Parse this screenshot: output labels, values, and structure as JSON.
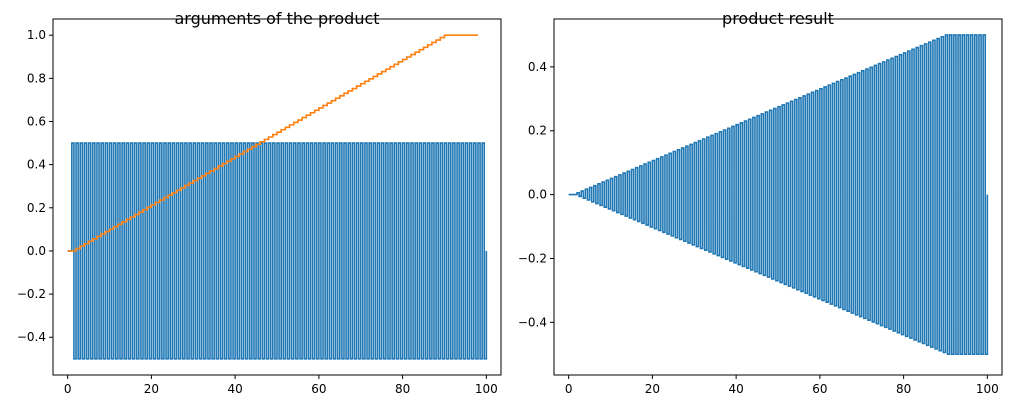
{
  "chart_data": [
    {
      "type": "line",
      "title": "arguments of the product",
      "xlabel": "",
      "ylabel": "",
      "xlim": [
        -3.5,
        103.5
      ],
      "ylim": [
        -0.575,
        1.075
      ],
      "xticks": [
        0,
        20,
        40,
        60,
        80,
        100
      ],
      "xtick_labels": [
        "0",
        "20",
        "40",
        "60",
        "80",
        "100"
      ],
      "yticks": [
        -0.4,
        -0.2,
        0.0,
        0.2,
        0.4,
        0.6,
        0.8,
        1.0
      ],
      "ytick_labels": [
        "−0.4",
        "−0.2",
        "0.0",
        "0.2",
        "0.4",
        "0.6",
        "0.8",
        "1.0"
      ],
      "grid": false,
      "series": [
        {
          "kind": "square-wave",
          "color": "#1f77b4",
          "x_start": 1,
          "x_end": 100,
          "period": 1,
          "high": 0.5,
          "low": -0.5,
          "pre_value": 0.0,
          "end_value": 0.0
        },
        {
          "kind": "ramp",
          "color": "#ff7f0e",
          "points": [
            [
              0,
              0.0
            ],
            [
              1,
              0.0
            ],
            [
              90,
              1.0
            ],
            [
              98,
              1.0
            ]
          ]
        }
      ]
    },
    {
      "type": "line",
      "title": "product result",
      "xlabel": "",
      "ylabel": "",
      "xlim": [
        -3.5,
        103.5
      ],
      "ylim": [
        -0.565,
        0.55
      ],
      "xticks": [
        0,
        20,
        40,
        60,
        80,
        100
      ],
      "xtick_labels": [
        "0",
        "20",
        "40",
        "60",
        "80",
        "100"
      ],
      "yticks": [
        -0.4,
        -0.2,
        0.0,
        0.2,
        0.4
      ],
      "ytick_labels": [
        "−0.4",
        "−0.2",
        "0.0",
        "0.2",
        "0.4"
      ],
      "grid": false,
      "series": [
        {
          "kind": "modulated-square-wave",
          "color": "#1f77b4",
          "x_start": 1,
          "x_end": 100,
          "period": 1,
          "envelope": [
            [
              0,
              0.0
            ],
            [
              1,
              0.0
            ],
            [
              90,
              0.5
            ],
            [
              100,
              0.5
            ]
          ],
          "pre_value": 0.0,
          "end_value": 0.0
        }
      ]
    }
  ]
}
